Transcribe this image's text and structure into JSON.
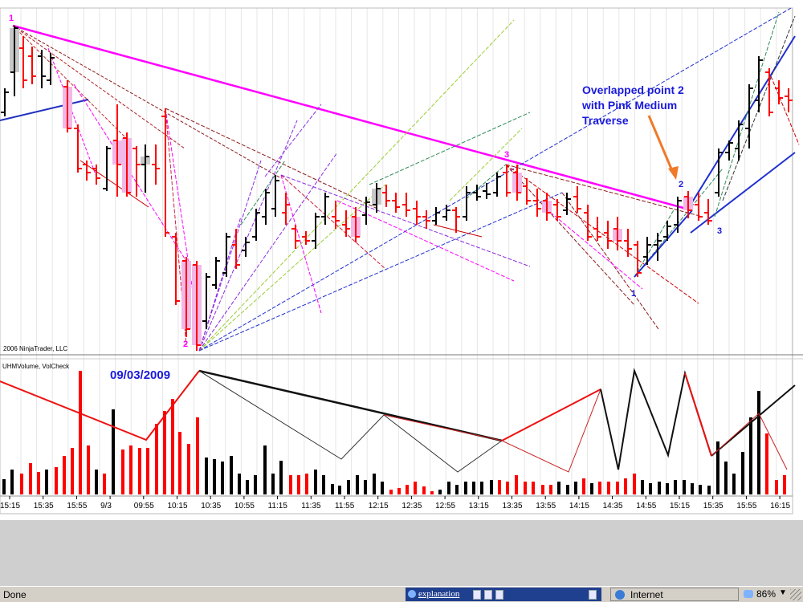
{
  "chart": {
    "annotation": {
      "lines": [
        "Overlapped point 2",
        "with Pink Medium",
        "Traverse"
      ]
    },
    "date_label": "09/03/2009",
    "copyright": "2006 NinjaTrader, LLC",
    "indicator_label": "UHMVolume, VolCheck",
    "point_labels": {
      "p1_top": "1",
      "p2_low": "2",
      "p3": "3",
      "p1_right": "1",
      "p2_right": "2",
      "p3_right": "3"
    },
    "time_labels": [
      "15:15",
      "15:35",
      "15:55",
      "9/3",
      "09:55",
      "10:15",
      "10:35",
      "10:55",
      "11:15",
      "11:35",
      "11:55",
      "12:15",
      "12:35",
      "12:55",
      "13:15",
      "13:35",
      "13:55",
      "14:15",
      "14:35",
      "14:55",
      "15:15",
      "15:35",
      "15:55",
      "16:15"
    ],
    "colors": {
      "up_bar": "#000000",
      "down_bar": "#ff0000",
      "magenta": "#ff00ff",
      "blue_label": "#0000ff",
      "annotation_text": "#1a1adb",
      "arrow": "#f07a28"
    }
  },
  "status_bar": {
    "status": "Done",
    "link": "explanation",
    "zone": "Internet",
    "zoom": "86%"
  }
}
